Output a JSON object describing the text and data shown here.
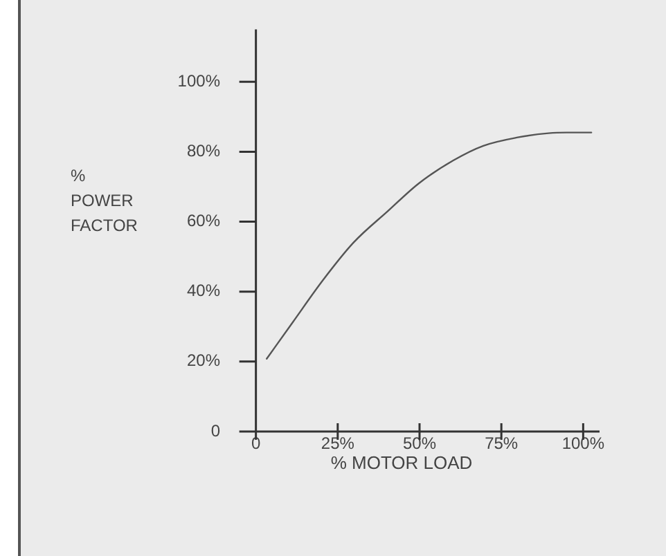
{
  "chart_data": {
    "type": "line",
    "xlabel": "% MOTOR LOAD",
    "ylabel": "%\nPOWER\nFACTOR",
    "series": [
      {
        "color": "#555555",
        "x": [
          3.3,
          11.3,
          20.5,
          29.8,
          40.4,
          49.7,
          60.3,
          69.5,
          80,
          89.4,
          95,
          102.5
        ],
        "values": [
          20.8,
          31.3,
          43.3,
          54,
          63.1,
          70.9,
          77.5,
          81.7,
          84.1,
          85.3,
          85.5,
          85.5
        ]
      }
    ],
    "xlim": [
      -5,
      105
    ],
    "ylim": [
      0,
      115
    ],
    "xticks": [
      0,
      {
        "value": 25,
        "label": "25%"
      },
      {
        "value": 50,
        "label": "50%"
      },
      {
        "value": 75,
        "label": "75%"
      },
      {
        "value": 100,
        "label": "100%"
      }
    ],
    "yticks": [
      0,
      {
        "value": 20,
        "label": "20%"
      },
      {
        "value": 40,
        "label": "40%"
      },
      {
        "value": 60,
        "label": "60%"
      },
      {
        "value": 80,
        "label": "80%"
      },
      {
        "value": 100,
        "label": "100%"
      }
    ],
    "grid": false,
    "legend": false,
    "marker": "none",
    "line_style": "solid"
  }
}
